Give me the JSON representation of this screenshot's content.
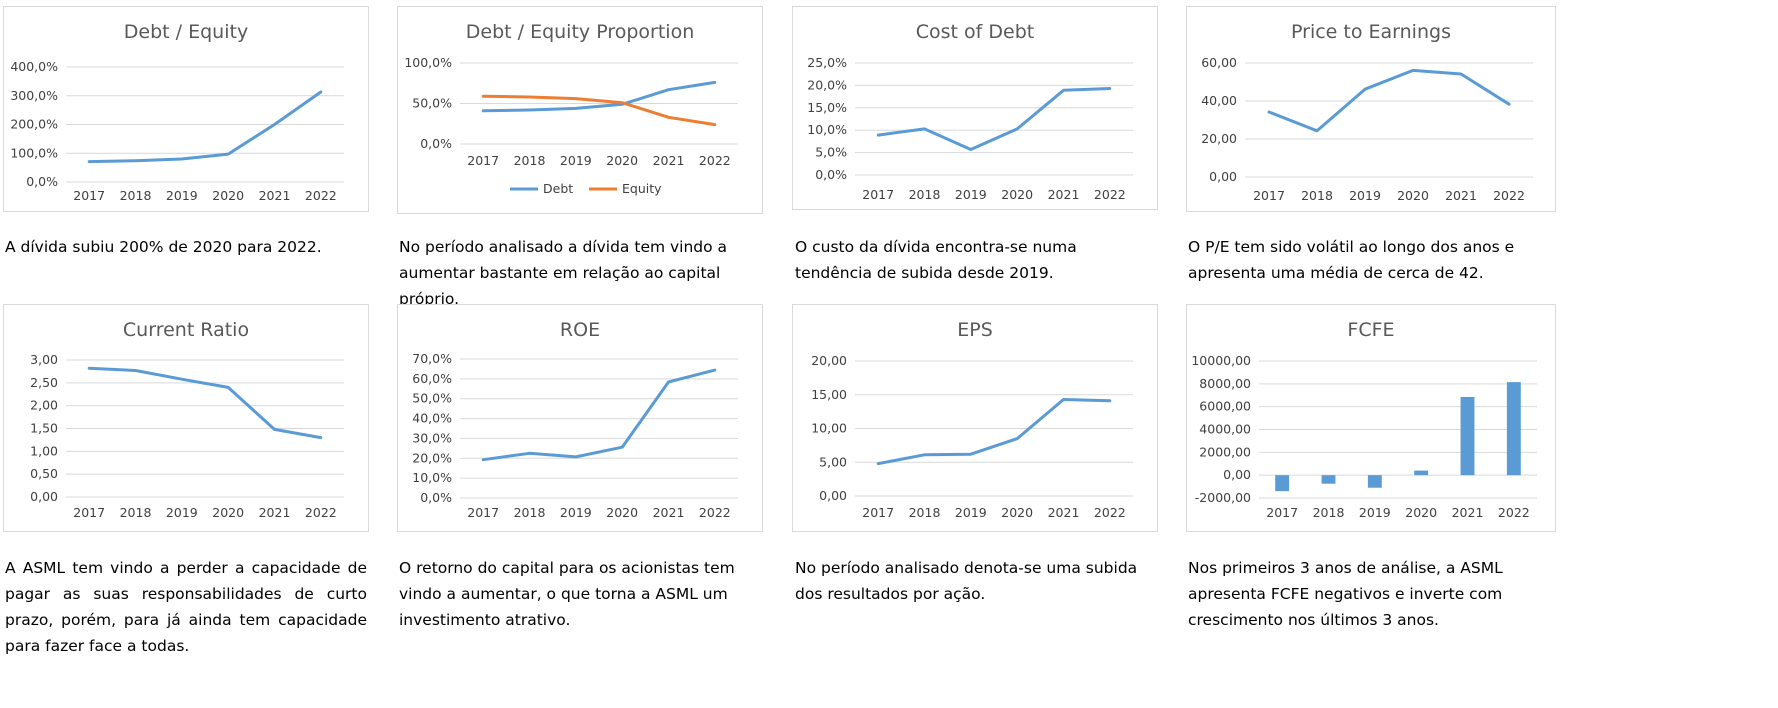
{
  "chart_data": [
    {
      "type": "line",
      "title": "Debt / Equity",
      "categories": [
        "2017",
        "2018",
        "2019",
        "2020",
        "2021",
        "2022"
      ],
      "yticks": [
        "0,0%",
        "100,0%",
        "200,0%",
        "300,0%",
        "400,0%"
      ],
      "ylim": [
        0,
        4
      ],
      "series": [
        {
          "values": [
            0.71,
            0.74,
            0.8,
            0.97,
            2.0,
            3.13
          ],
          "color": "#5B9BD5"
        }
      ],
      "grid": true
    },
    {
      "type": "line",
      "title": "Debt / Equity Proportion",
      "categories": [
        "2017",
        "2018",
        "2019",
        "2020",
        "2021",
        "2022"
      ],
      "yticks": [
        "0,0%",
        "50,0%",
        "100,0%"
      ],
      "ylim": [
        0,
        1
      ],
      "legend": "bottom",
      "series": [
        {
          "name": "Debt",
          "values": [
            0.41,
            0.42,
            0.44,
            0.49,
            0.67,
            0.76
          ],
          "color": "#5B9BD5"
        },
        {
          "name": "Equity",
          "values": [
            0.59,
            0.58,
            0.56,
            0.51,
            0.33,
            0.24
          ],
          "color": "#ED7D31"
        }
      ],
      "grid": true
    },
    {
      "type": "line",
      "title": "Cost of Debt",
      "categories": [
        "2017",
        "2018",
        "2019",
        "2020",
        "2021",
        "2022"
      ],
      "yticks": [
        "0,0%",
        "5,0%",
        "10,0%",
        "15,0%",
        "20,0%",
        "25,0%"
      ],
      "ylim": [
        0,
        0.25
      ],
      "series": [
        {
          "values": [
            0.089,
            0.103,
            0.057,
            0.103,
            0.189,
            0.193
          ],
          "color": "#5B9BD5"
        }
      ],
      "grid": true
    },
    {
      "type": "line",
      "title": "Price to Earnings",
      "categories": [
        "2017",
        "2018",
        "2019",
        "2020",
        "2021",
        "2022"
      ],
      "yticks": [
        "0,00",
        "20,00",
        "40,00",
        "60,00"
      ],
      "ylim": [
        0,
        60
      ],
      "series": [
        {
          "values": [
            34.2,
            24.3,
            46.2,
            56.1,
            54.2,
            38.3
          ],
          "color": "#5B9BD5"
        }
      ],
      "grid": true
    },
    {
      "type": "line",
      "title": "Current Ratio",
      "categories": [
        "2017",
        "2018",
        "2019",
        "2020",
        "2021",
        "2022"
      ],
      "yticks": [
        "0,00",
        "0,50",
        "1,00",
        "1,50",
        "2,00",
        "2,50",
        "3,00"
      ],
      "ylim": [
        0,
        3
      ],
      "series": [
        {
          "values": [
            2.82,
            2.77,
            2.58,
            2.4,
            1.48,
            1.3
          ],
          "color": "#5B9BD5"
        }
      ],
      "grid": true
    },
    {
      "type": "line",
      "title": "ROE",
      "categories": [
        "2017",
        "2018",
        "2019",
        "2020",
        "2021",
        "2022"
      ],
      "yticks": [
        "0,0%",
        "10,0%",
        "20,0%",
        "30,0%",
        "40,0%",
        "50,0%",
        "60,0%",
        "70,0%"
      ],
      "ylim": [
        0,
        0.7
      ],
      "series": [
        {
          "values": [
            0.193,
            0.225,
            0.207,
            0.256,
            0.584,
            0.644
          ],
          "color": "#5B9BD5"
        }
      ],
      "grid": true
    },
    {
      "type": "line",
      "title": "EPS",
      "categories": [
        "2017",
        "2018",
        "2019",
        "2020",
        "2021",
        "2022"
      ],
      "yticks": [
        "0,00",
        "5,00",
        "10,00",
        "15,00",
        "20,00"
      ],
      "ylim": [
        0,
        20
      ],
      "series": [
        {
          "values": [
            4.8,
            6.1,
            6.2,
            8.5,
            14.3,
            14.1
          ],
          "color": "#5B9BD5"
        }
      ],
      "grid": true
    },
    {
      "type": "bar",
      "title": "FCFE",
      "categories": [
        "2017",
        "2018",
        "2019",
        "2020",
        "2021",
        "2022"
      ],
      "yticks": [
        "-2000,00",
        "0,00",
        "2000,00",
        "4000,00",
        "6000,00",
        "8000,00",
        "10000,00"
      ],
      "ylim": [
        -2000,
        10000
      ],
      "series": [
        {
          "values": [
            -1400,
            -750,
            -1100,
            400,
            6850,
            8150
          ],
          "color": "#5B9BD5"
        }
      ],
      "grid": true
    }
  ],
  "descriptions": [
    "A dívida subiu 200% de 2020 para 2022.",
    "No período analisado a dívida tem vindo a aumentar bastante em relação ao capital próprio.",
    "O custo da dívida encontra-se numa tendência de subida desde 2019.",
    "O P/E tem sido volátil ao longo dos anos e apresenta uma média de cerca de 42.",
    "A ASML tem vindo a perder a capacidade de pagar as suas responsabilidades de curto prazo, porém, para já ainda tem capacidade para fazer face a todas.",
    "O retorno do capital para os acionistas tem vindo a aumentar, o que torna a ASML um investimento atrativo.",
    "No período analisado denota-se uma subida dos resultados por ação.",
    "Nos primeiros 3 anos de análise, a ASML apresenta FCFE negativos e inverte com crescimento nos últimos 3 anos."
  ]
}
